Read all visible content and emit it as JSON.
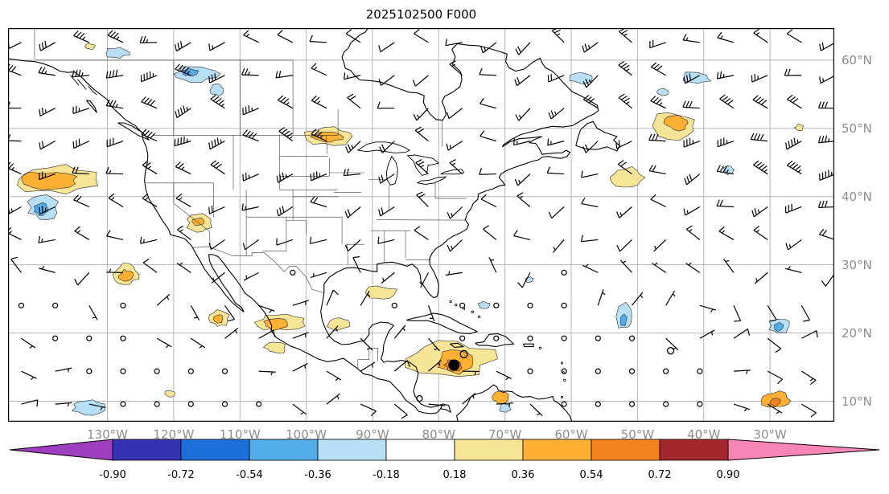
{
  "title": "2025102500 F000",
  "chart_data": {
    "type": "map",
    "title": "2025102500 F000",
    "description": "Wind barb field with shaded anomaly regions over North America and adjacent oceans",
    "projection": "equirectangular",
    "lon_range": [
      -145,
      -20.3
    ],
    "lat_range": [
      7,
      64.7
    ],
    "grid": true,
    "grid_color": "#b5b5b5",
    "tick_color": "#8c8c8c",
    "lon_ticks": [
      {
        "lon": -130,
        "label": "130°W"
      },
      {
        "lon": -120,
        "label": "120°W"
      },
      {
        "lon": -110,
        "label": "110°W"
      },
      {
        "lon": -100,
        "label": "100°W"
      },
      {
        "lon": -90,
        "label": "90°W"
      },
      {
        "lon": -80,
        "label": "80°W"
      },
      {
        "lon": -70,
        "label": "70°W"
      },
      {
        "lon": -60,
        "label": "60°W"
      },
      {
        "lon": -50,
        "label": "50°W"
      },
      {
        "lon": -40,
        "label": "40°W"
      },
      {
        "lon": -30,
        "label": "30°W"
      }
    ],
    "lat_ticks": [
      {
        "lat": 60,
        "label": "60°N"
      },
      {
        "lat": 50,
        "label": "50°N"
      },
      {
        "lat": 40,
        "label": "40°N"
      },
      {
        "lat": 30,
        "label": "30°N"
      },
      {
        "lat": 20,
        "label": "20°N"
      },
      {
        "lat": 10,
        "label": "10°N"
      }
    ],
    "colorbar": {
      "orientation": "horizontal",
      "extend": "both",
      "boundaries": [
        -0.9,
        -0.72,
        -0.54,
        -0.36,
        -0.18,
        0.18,
        0.36,
        0.54,
        0.72,
        0.9
      ],
      "labels": [
        "-0.90",
        "-0.72",
        "-0.54",
        "-0.36",
        "-0.18",
        "0.18",
        "0.36",
        "0.54",
        "0.72",
        "0.90"
      ],
      "segment_colors": [
        "#3434B2",
        "#1E6FD9",
        "#54ACE8",
        "#B7DFF6",
        "#FFFFFF",
        "#F6E497",
        "#FDB033",
        "#F58220",
        "#A3282B"
      ],
      "under_color": "#9E3FC0",
      "over_color": "#F785B5"
    },
    "shaded_regions": [
      {
        "lon": -132.6,
        "lat": 62.0,
        "rx": 0.7,
        "ry": 0.4,
        "value": 0.27
      },
      {
        "lon": -128.6,
        "lat": 61.1,
        "rx": 2.0,
        "ry": 0.7,
        "value": -0.27
      },
      {
        "lon": -116.6,
        "lat": 58.0,
        "rx": 3.0,
        "ry": 1.1,
        "value": -0.27
      },
      {
        "lon": -117.4,
        "lat": 58.2,
        "rx": 1.1,
        "ry": 0.5,
        "value": -0.45
      },
      {
        "lon": -113.4,
        "lat": 55.6,
        "rx": 1.0,
        "ry": 0.8,
        "value": -0.27
      },
      {
        "lon": -96.6,
        "lat": 48.8,
        "rx": 3.4,
        "ry": 1.3,
        "value": 0.27
      },
      {
        "lon": -96.8,
        "lat": 48.8,
        "rx": 2.2,
        "ry": 0.8,
        "value": 0.45
      },
      {
        "lon": -137.8,
        "lat": 42.6,
        "rx": 6.2,
        "ry": 2.0,
        "value": 0.27
      },
      {
        "lon": -138.6,
        "lat": 42.4,
        "rx": 4.4,
        "ry": 1.3,
        "value": 0.45
      },
      {
        "lon": -139.7,
        "lat": 38.4,
        "rx": 2.2,
        "ry": 1.7,
        "value": -0.27
      },
      {
        "lon": -140.0,
        "lat": 38.2,
        "rx": 1.1,
        "ry": 0.9,
        "value": -0.45
      },
      {
        "lon": -116.1,
        "lat": 36.1,
        "rx": 1.8,
        "ry": 1.3,
        "value": 0.27
      },
      {
        "lon": -116.3,
        "lat": 36.3,
        "rx": 0.8,
        "ry": 0.6,
        "value": 0.45
      },
      {
        "lon": -127.1,
        "lat": 28.6,
        "rx": 1.8,
        "ry": 1.4,
        "value": 0.27
      },
      {
        "lon": -127.2,
        "lat": 28.4,
        "rx": 1.0,
        "ry": 0.8,
        "value": 0.45
      },
      {
        "lon": -113.1,
        "lat": 22.1,
        "rx": 1.4,
        "ry": 1.1,
        "value": 0.27
      },
      {
        "lon": -113.2,
        "lat": 22.0,
        "rx": 0.7,
        "ry": 0.6,
        "value": 0.45
      },
      {
        "lon": -103.8,
        "lat": 21.6,
        "rx": 3.6,
        "ry": 1.2,
        "value": 0.27
      },
      {
        "lon": -104.6,
        "lat": 21.3,
        "rx": 1.8,
        "ry": 0.8,
        "value": 0.45
      },
      {
        "lon": -95.2,
        "lat": 21.4,
        "rx": 1.6,
        "ry": 0.9,
        "value": 0.27
      },
      {
        "lon": -88.9,
        "lat": 25.9,
        "rx": 2.4,
        "ry": 1.0,
        "value": 0.27
      },
      {
        "lon": -104.6,
        "lat": 17.9,
        "rx": 1.6,
        "ry": 0.9,
        "value": 0.27
      },
      {
        "lon": -78.6,
        "lat": 16.2,
        "rx": 6.6,
        "ry": 2.6,
        "value": 0.27
      },
      {
        "lon": -77.6,
        "lat": 15.8,
        "rx": 2.6,
        "ry": 1.7,
        "value": 0.45
      },
      {
        "lon": -77.8,
        "lat": 15.3,
        "rx": 1.2,
        "ry": 0.9,
        "value": 0.63
      },
      {
        "lon": -70.6,
        "lat": 10.6,
        "rx": 1.3,
        "ry": 0.9,
        "value": 0.45
      },
      {
        "lon": -70.0,
        "lat": 9.0,
        "rx": 0.8,
        "ry": 0.6,
        "value": -0.27
      },
      {
        "lon": -52.1,
        "lat": 22.4,
        "rx": 1.1,
        "ry": 1.9,
        "value": -0.27
      },
      {
        "lon": -52.1,
        "lat": 21.9,
        "rx": 0.5,
        "ry": 0.9,
        "value": -0.45
      },
      {
        "lon": -44.6,
        "lat": 50.4,
        "rx": 3.4,
        "ry": 1.9,
        "value": 0.27
      },
      {
        "lon": -44.1,
        "lat": 50.8,
        "rx": 1.7,
        "ry": 1.0,
        "value": 0.45
      },
      {
        "lon": -51.5,
        "lat": 42.8,
        "rx": 2.5,
        "ry": 1.4,
        "value": 0.27
      },
      {
        "lon": -41.2,
        "lat": 57.4,
        "rx": 2.1,
        "ry": 0.9,
        "value": -0.27
      },
      {
        "lon": -58.6,
        "lat": 57.4,
        "rx": 1.7,
        "ry": 0.8,
        "value": -0.27
      },
      {
        "lon": -46.2,
        "lat": 55.3,
        "rx": 0.8,
        "ry": 0.5,
        "value": -0.27
      },
      {
        "lon": -36.2,
        "lat": 43.9,
        "rx": 0.8,
        "ry": 0.6,
        "value": -0.27
      },
      {
        "lon": -66.3,
        "lat": 27.8,
        "rx": 0.6,
        "ry": 0.4,
        "value": -0.27
      },
      {
        "lon": -73.2,
        "lat": 24.1,
        "rx": 0.8,
        "ry": 0.5,
        "value": -0.27
      },
      {
        "lon": -28.6,
        "lat": 21.1,
        "rx": 1.4,
        "ry": 1.2,
        "value": -0.27
      },
      {
        "lon": -28.7,
        "lat": 20.9,
        "rx": 0.7,
        "ry": 0.6,
        "value": -0.45
      },
      {
        "lon": -29.1,
        "lat": 10.1,
        "rx": 2.0,
        "ry": 1.2,
        "value": 0.45
      },
      {
        "lon": -29.2,
        "lat": 9.9,
        "rx": 0.8,
        "ry": 0.6,
        "value": 0.63
      },
      {
        "lon": -132.8,
        "lat": 9.1,
        "rx": 2.4,
        "ry": 1.0,
        "value": -0.27
      },
      {
        "lon": -120.6,
        "lat": 11.1,
        "rx": 0.7,
        "ry": 0.5,
        "value": 0.27
      },
      {
        "lon": -25.6,
        "lat": 50.1,
        "rx": 0.6,
        "ry": 0.5,
        "value": 0.27
      }
    ],
    "markers": [
      {
        "type": "filled-dot",
        "lon": -77.7,
        "lat": 15.3,
        "radius_px": 7
      },
      {
        "type": "open-circle",
        "lon": -76.2,
        "lat": 16.9,
        "radius_px": 4.5
      },
      {
        "type": "open-circle",
        "lon": -45.0,
        "lat": 17.4,
        "radius_px": 4
      },
      {
        "type": "open-circle",
        "lon": -82.9,
        "lat": 10.4,
        "radius_px": 3.5
      }
    ],
    "wind_barbs": {
      "style": "meteorological wind barbs, black",
      "approx_spacing_deg": 5,
      "flow_pattern": "westerlies in mid-latitudes, easterlies in the tropics, strongest winds near 50N"
    }
  }
}
